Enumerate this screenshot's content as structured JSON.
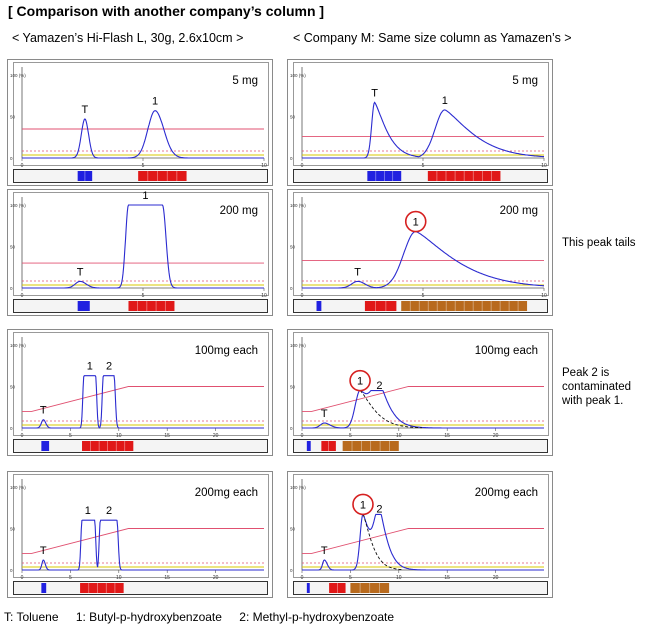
{
  "title": "[ Comparison with another company’s column ]",
  "left_header": "< Yamazen’s Hi-Flash L, 30g, 2.6x10cm >",
  "right_header": "< Company M: Same size column as Yamazen’s >",
  "notes": {
    "tails": "This peak tails",
    "contaminated": "Peak 2 is contaminated with peak 1."
  },
  "legend": {
    "t": "T: Toluene",
    "p1": "1: Butyl-p-hydroxybenzoate",
    "p2": "2: Methyl-p-hydroxybenzoate"
  },
  "colors": {
    "trace": "#2b2bd0",
    "gradient": "#e05070",
    "threshold": "#d8c800",
    "circle": "#d62020",
    "fraction_blue": "#2020e0",
    "fraction_red": "#e01818",
    "fraction_brown": "#b86a1e"
  },
  "chart_data": [
    {
      "id": "L1",
      "type": "line",
      "column": "Yamazen",
      "load": "5 mg",
      "xlim": [
        0,
        10
      ],
      "ylim": [
        0,
        100
      ],
      "xticks": [
        "0",
        "5",
        "10"
      ],
      "yticks": [
        "100 (%)",
        "50",
        "0"
      ],
      "gradient": {
        "x": [
          0,
          10
        ],
        "y": [
          35,
          35
        ]
      },
      "peaks": [
        {
          "label": "T",
          "center": 2.6,
          "height": 47,
          "width_left": 0.15,
          "width_right": 0.15,
          "shape": "gauss"
        },
        {
          "label": "1",
          "center": 5.5,
          "height": 57,
          "width_left": 0.3,
          "width_right": 0.36,
          "shape": "gauss"
        }
      ],
      "fractions": [
        {
          "start": 2.3,
          "end": 2.9,
          "color": "blue"
        },
        {
          "start": 4.8,
          "end": 6.8,
          "color": "red"
        }
      ]
    },
    {
      "id": "R1",
      "type": "line",
      "column": "Company M",
      "load": "5 mg",
      "xlim": [
        0,
        10
      ],
      "ylim": [
        0,
        100
      ],
      "xticks": [
        "0",
        "5",
        "10"
      ],
      "yticks": [
        "100 (%)",
        "50",
        "0"
      ],
      "gradient": {
        "x": [
          0,
          10
        ],
        "y": [
          26,
          26
        ]
      },
      "peaks": [
        {
          "label": "T",
          "center": 3.0,
          "height": 67,
          "width_left": 0.12,
          "width_right": 0.55,
          "shape": "tail"
        },
        {
          "label": "1",
          "center": 5.9,
          "height": 58,
          "width_left": 0.4,
          "width_right": 1.3,
          "shape": "tail"
        }
      ],
      "fractions": [
        {
          "start": 2.7,
          "end": 4.1,
          "color": "blue"
        },
        {
          "start": 5.2,
          "end": 8.2,
          "color": "red"
        }
      ]
    },
    {
      "id": "L2",
      "type": "line",
      "column": "Yamazen",
      "load": "200 mg",
      "xlim": [
        0,
        10
      ],
      "ylim": [
        0,
        100
      ],
      "xticks": [
        "0",
        "5",
        "10"
      ],
      "yticks": [
        "100 (%)",
        "50",
        "0"
      ],
      "gradient": {
        "x": [
          0,
          10
        ],
        "y": [
          30,
          30
        ]
      },
      "peaks": [
        {
          "label": "T",
          "center": 2.4,
          "height": 8,
          "width_left": 0.2,
          "width_right": 0.25,
          "shape": "gauss"
        },
        {
          "label": "1",
          "center": 5.1,
          "height": 100,
          "width_left": 0.12,
          "width_right": 0.15,
          "shape": "flat",
          "flat_start": 4.4,
          "flat_end": 5.8
        }
      ],
      "fractions": [
        {
          "start": 2.3,
          "end": 2.8,
          "color": "blue"
        },
        {
          "start": 4.4,
          "end": 6.3,
          "color": "red"
        }
      ]
    },
    {
      "id": "R2",
      "type": "line",
      "column": "Company M",
      "load": "200 mg",
      "xlim": [
        0,
        10
      ],
      "ylim": [
        0,
        100
      ],
      "xticks": [
        "0",
        "5",
        "10"
      ],
      "yticks": [
        "100 (%)",
        "50",
        "0"
      ],
      "gradient": {
        "x": [
          0,
          10
        ],
        "y": [
          33,
          33
        ]
      },
      "peaks": [
        {
          "label": "T",
          "center": 2.3,
          "height": 8,
          "width_left": 0.25,
          "width_right": 0.3,
          "shape": "gauss"
        },
        {
          "label": "1",
          "center": 4.7,
          "height": 68,
          "width_left": 0.5,
          "width_right": 1.8,
          "shape": "tail"
        }
      ],
      "fractions": [
        {
          "start": 0.6,
          "end": 0.8,
          "color": "blue"
        },
        {
          "start": 2.6,
          "end": 3.9,
          "color": "red"
        },
        {
          "start": 4.1,
          "end": 9.3,
          "color": "brown"
        }
      ]
    },
    {
      "id": "L3",
      "type": "line",
      "column": "Yamazen",
      "load": "100mg each",
      "xlim": [
        0,
        25
      ],
      "ylim": [
        0,
        100
      ],
      "xticks": [
        "0",
        "5",
        "10",
        "15",
        "20"
      ],
      "yticks": [
        "100 (%)",
        "50",
        "0"
      ],
      "gradient": {
        "x": [
          0,
          1,
          11,
          25
        ],
        "y": [
          20,
          20,
          50,
          50
        ]
      },
      "peaks": [
        {
          "label": "T",
          "center": 2.2,
          "height": 10,
          "width_left": 0.2,
          "width_right": 0.25,
          "shape": "gauss"
        },
        {
          "label": "1",
          "center": 7.0,
          "height": 63,
          "width_left": 0.12,
          "width_right": 0.12,
          "shape": "flat",
          "flat_start": 6.4,
          "flat_end": 7.6
        },
        {
          "label": "2",
          "center": 9.0,
          "height": 63,
          "width_left": 0.12,
          "width_right": 0.14,
          "shape": "flat",
          "flat_start": 8.4,
          "flat_end": 9.5
        }
      ],
      "fractions": [
        {
          "start": 2.0,
          "end": 2.8,
          "color": "blue"
        },
        {
          "start": 6.2,
          "end": 11.5,
          "color": "red"
        }
      ]
    },
    {
      "id": "R3",
      "type": "line",
      "column": "Company M",
      "load": "100mg each",
      "xlim": [
        0,
        25
      ],
      "ylim": [
        0,
        100
      ],
      "xticks": [
        "0",
        "5",
        "10",
        "15",
        "20"
      ],
      "yticks": [
        "100 (%)",
        "50",
        "0"
      ],
      "gradient": {
        "x": [
          0,
          1,
          11,
          25
        ],
        "y": [
          20,
          20,
          50,
          50
        ]
      },
      "peaks": [
        {
          "label": "T",
          "center": 2.3,
          "height": 6,
          "width_left": 0.4,
          "width_right": 0.6,
          "shape": "gauss"
        },
        {
          "label": "1",
          "center": 6.0,
          "height": 45,
          "width_left": 0.5,
          "width_right": 1.6,
          "shape": "tail"
        },
        {
          "label": "2",
          "center": 8.0,
          "height": 40,
          "width_left": 0.7,
          "width_right": 1.1,
          "shape": "tail"
        }
      ],
      "fractions": [
        {
          "start": 0.5,
          "end": 0.9,
          "color": "blue"
        },
        {
          "start": 2.0,
          "end": 3.5,
          "color": "red"
        },
        {
          "start": 4.2,
          "end": 10.0,
          "color": "brown"
        }
      ]
    },
    {
      "id": "L4",
      "type": "line",
      "column": "Yamazen",
      "load": "200mg each",
      "xlim": [
        0,
        25
      ],
      "ylim": [
        0,
        100
      ],
      "xticks": [
        "0",
        "5",
        "10",
        "15",
        "20"
      ],
      "yticks": [
        "100 (%)",
        "50",
        "0"
      ],
      "gradient": {
        "x": [
          0,
          1,
          11,
          25
        ],
        "y": [
          20,
          20,
          50,
          50
        ]
      },
      "peaks": [
        {
          "label": "T",
          "center": 2.2,
          "height": 12,
          "width_left": 0.15,
          "width_right": 0.2,
          "shape": "gauss"
        },
        {
          "label": "1",
          "center": 6.8,
          "height": 60,
          "width_left": 0.12,
          "width_right": 0.12,
          "shape": "flat",
          "flat_start": 6.2,
          "flat_end": 7.5
        },
        {
          "label": "2",
          "center": 9.0,
          "height": 60,
          "width_left": 0.12,
          "width_right": 0.14,
          "shape": "flat",
          "flat_start": 8.1,
          "flat_end": 9.8
        }
      ],
      "fractions": [
        {
          "start": 2.0,
          "end": 2.5,
          "color": "blue"
        },
        {
          "start": 6.0,
          "end": 10.5,
          "color": "red"
        }
      ]
    },
    {
      "id": "R4",
      "type": "line",
      "column": "Company M",
      "load": "200mg each",
      "xlim": [
        0,
        25
      ],
      "ylim": [
        0,
        100
      ],
      "xticks": [
        "0",
        "5",
        "10",
        "15",
        "20"
      ],
      "yticks": [
        "100 (%)",
        "50",
        "0"
      ],
      "gradient": {
        "x": [
          0,
          1,
          11,
          25
        ],
        "y": [
          20,
          20,
          50,
          50
        ]
      },
      "peaks": [
        {
          "label": "T",
          "center": 2.3,
          "height": 12,
          "width_left": 0.18,
          "width_right": 0.3,
          "shape": "gauss"
        },
        {
          "label": "1",
          "center": 6.3,
          "height": 67,
          "width_left": 0.3,
          "width_right": 1.0,
          "shape": "tail"
        },
        {
          "label": "2",
          "center": 8.0,
          "height": 62,
          "width_left": 0.5,
          "width_right": 0.9,
          "shape": "tail"
        }
      ],
      "fractions": [
        {
          "start": 0.5,
          "end": 0.8,
          "color": "blue"
        },
        {
          "start": 2.8,
          "end": 4.5,
          "color": "red"
        },
        {
          "start": 5.0,
          "end": 9.0,
          "color": "brown"
        }
      ]
    }
  ]
}
